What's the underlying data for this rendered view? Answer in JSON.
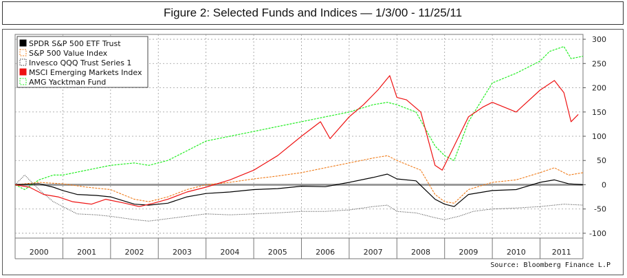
{
  "header": {
    "title": "Figure 2: Selected Funds and Indices — 1/3/00 - 11/25/11"
  },
  "source": "Source: Bloomberg Finance L.P",
  "colors": {
    "spdr": "#000000",
    "value": "#f07c1a",
    "qqq": "#333333",
    "msci": "#ee1111",
    "yacktman": "#22ee22",
    "zero_line": "#999999"
  },
  "chart_data": {
    "type": "line",
    "title": "Figure 2: Selected Funds and Indices — 1/3/00 - 11/25/11",
    "xlabel": "",
    "ylabel": "",
    "ylim": [
      -110,
      310
    ],
    "xlim": [
      2000.0,
      2011.9
    ],
    "y_ticks": [
      300,
      250,
      200,
      150,
      100,
      50,
      0,
      -50,
      -100
    ],
    "y_tick_labels": [
      "300",
      "250",
      "200",
      "150",
      "100",
      "50",
      "0",
      "-50",
      "-100"
    ],
    "x_ticks": [
      2000,
      2001,
      2002,
      2003,
      2004,
      2005,
      2006,
      2007,
      2008,
      2009,
      2010,
      2011
    ],
    "x_tick_labels": [
      "2000",
      "2001",
      "2002",
      "2003",
      "2004",
      "2005",
      "2006",
      "2007",
      "2008",
      "2009",
      "2010",
      "2011"
    ],
    "grid": true,
    "zero_line": true,
    "legend_position": "top-left",
    "series": [
      {
        "name": "SPDR S&P 500 ETF Trust",
        "style": "solid-black",
        "x": [
          2000.0,
          2000.5,
          2000.8,
          2001.0,
          2001.3,
          2001.7,
          2002.0,
          2002.5,
          2002.8,
          2003.2,
          2003.6,
          2004.0,
          2004.5,
          2005.0,
          2005.5,
          2006.0,
          2006.5,
          2007.0,
          2007.5,
          2007.8,
          2008.0,
          2008.4,
          2008.8,
          2009.0,
          2009.2,
          2009.5,
          2010.0,
          2010.5,
          2011.0,
          2011.3,
          2011.6,
          2011.9
        ],
        "values": [
          0,
          2,
          -5,
          -12,
          -20,
          -22,
          -25,
          -40,
          -42,
          -38,
          -25,
          -18,
          -15,
          -10,
          -8,
          -3,
          -4,
          5,
          15,
          22,
          12,
          8,
          -30,
          -40,
          -45,
          -20,
          -12,
          -10,
          5,
          10,
          2,
          0
        ]
      },
      {
        "name": "S&P 500 Value Index",
        "style": "dashed-orange",
        "x": [
          2000.0,
          2000.5,
          2001.0,
          2001.5,
          2002.0,
          2002.5,
          2002.8,
          2003.2,
          2003.6,
          2004.0,
          2004.5,
          2005.0,
          2005.5,
          2006.0,
          2006.5,
          2007.0,
          2007.5,
          2007.8,
          2008.0,
          2008.5,
          2008.8,
          2009.0,
          2009.2,
          2009.5,
          2010.0,
          2010.5,
          2011.0,
          2011.3,
          2011.6,
          2011.9
        ],
        "values": [
          0,
          5,
          2,
          -5,
          -10,
          -30,
          -35,
          -25,
          -10,
          0,
          5,
          12,
          18,
          25,
          35,
          45,
          55,
          60,
          50,
          30,
          -20,
          -35,
          -38,
          -10,
          5,
          10,
          25,
          35,
          20,
          25
        ]
      },
      {
        "name": "Invesco QQQ Trust Series 1",
        "style": "dotted-black",
        "x": [
          2000.0,
          2000.2,
          2000.5,
          2000.8,
          2001.0,
          2001.3,
          2001.7,
          2002.0,
          2002.5,
          2002.8,
          2003.2,
          2003.6,
          2004.0,
          2004.5,
          2005.0,
          2005.5,
          2006.0,
          2006.5,
          2007.0,
          2007.5,
          2007.8,
          2008.0,
          2008.4,
          2008.8,
          2009.0,
          2009.3,
          2009.6,
          2010.0,
          2010.5,
          2011.0,
          2011.5,
          2011.9
        ],
        "values": [
          0,
          20,
          -10,
          -35,
          -45,
          -60,
          -62,
          -65,
          -72,
          -75,
          -70,
          -65,
          -60,
          -62,
          -60,
          -58,
          -55,
          -55,
          -52,
          -45,
          -42,
          -55,
          -58,
          -68,
          -72,
          -65,
          -55,
          -50,
          -48,
          -45,
          -40,
          -42
        ]
      },
      {
        "name": "MSCI Emerging Markets Index",
        "style": "solid-red",
        "x": [
          2000.0,
          2000.3,
          2000.6,
          2000.9,
          2001.2,
          2001.6,
          2001.9,
          2002.3,
          2002.6,
          2002.9,
          2003.2,
          2003.6,
          2004.0,
          2004.5,
          2005.0,
          2005.5,
          2006.0,
          2006.4,
          2006.6,
          2007.0,
          2007.3,
          2007.6,
          2007.85,
          2008.0,
          2008.2,
          2008.5,
          2008.8,
          2008.95,
          2009.2,
          2009.5,
          2009.8,
          2010.0,
          2010.5,
          2011.0,
          2011.3,
          2011.5,
          2011.65,
          2011.8
        ],
        "values": [
          0,
          -5,
          -20,
          -25,
          -35,
          -40,
          -30,
          -38,
          -45,
          -38,
          -30,
          -15,
          -5,
          10,
          30,
          60,
          100,
          130,
          95,
          140,
          165,
          195,
          225,
          180,
          175,
          150,
          40,
          30,
          80,
          140,
          160,
          170,
          150,
          195,
          215,
          190,
          130,
          145
        ]
      },
      {
        "name": "AMG Yacktman Fund",
        "style": "dashed-green",
        "x": [
          2000.0,
          2000.2,
          2000.5,
          2000.8,
          2001.0,
          2001.5,
          2002.0,
          2002.5,
          2002.8,
          2003.2,
          2003.6,
          2004.0,
          2004.5,
          2005.0,
          2005.5,
          2006.0,
          2006.5,
          2007.0,
          2007.5,
          2007.8,
          2008.0,
          2008.4,
          2008.8,
          2009.0,
          2009.2,
          2009.5,
          2010.0,
          2010.5,
          2011.0,
          2011.2,
          2011.5,
          2011.65,
          2011.9
        ],
        "values": [
          0,
          -10,
          10,
          20,
          20,
          30,
          40,
          45,
          40,
          50,
          70,
          90,
          100,
          110,
          120,
          130,
          140,
          150,
          165,
          170,
          165,
          150,
          80,
          60,
          50,
          130,
          210,
          230,
          255,
          275,
          285,
          260,
          265
        ]
      }
    ]
  }
}
